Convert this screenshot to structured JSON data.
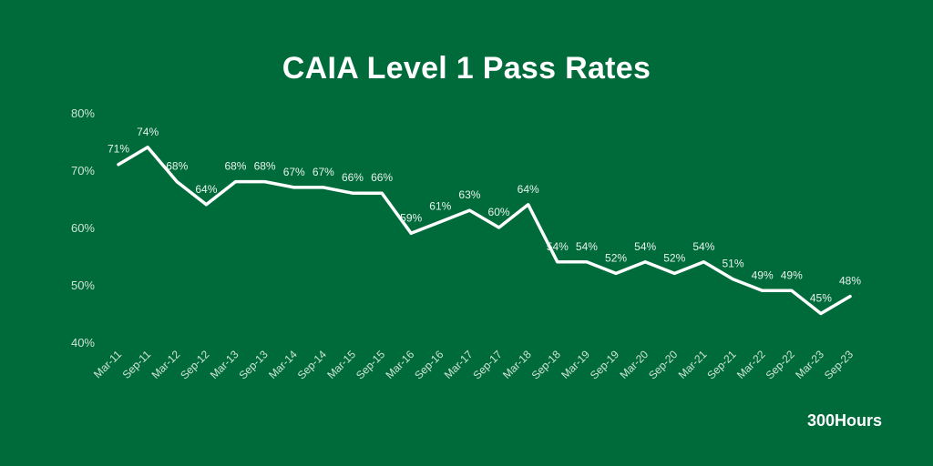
{
  "chart_data": {
    "type": "line",
    "title": "CAIA Level 1 Pass Rates",
    "xlabel": "",
    "ylabel": "",
    "x": [
      "Mar-11",
      "Sep-11",
      "Mar-12",
      "Sep-12",
      "Mar-13",
      "Sep-13",
      "Mar-14",
      "Sep-14",
      "Mar-15",
      "Sep-15",
      "Mar-16",
      "Sep-16",
      "Mar-17",
      "Sep-17",
      "Mar-18",
      "Sep-18",
      "Mar-19",
      "Sep-19",
      "Mar-20",
      "Sep-20",
      "Mar-21",
      "Sep-21",
      "Mar-22",
      "Sep-22",
      "Mar-23",
      "Sep-23"
    ],
    "series": [
      {
        "values": [
          71,
          74,
          68,
          64,
          68,
          68,
          67,
          67,
          66,
          66,
          59,
          61,
          63,
          60,
          64,
          54,
          54,
          52,
          54,
          52,
          54,
          51,
          49,
          49,
          45,
          48
        ],
        "data_labels": [
          "71%",
          "74%",
          "68%",
          "64%",
          "68%",
          "68%",
          "67%",
          "67%",
          "66%",
          "66%",
          "59%",
          "61%",
          "63%",
          "60%",
          "64%",
          "54%",
          "54%",
          "52%",
          "54%",
          "52%",
          "54%",
          "51%",
          "49%",
          "49%",
          "45%",
          "48%"
        ]
      }
    ],
    "ylim": [
      40,
      80
    ],
    "yticks": [
      40,
      50,
      60,
      70,
      80
    ],
    "ytick_labels": [
      "40%",
      "50%",
      "60%",
      "70%",
      "80%"
    ],
    "grid": false,
    "legend": "none"
  },
  "brand": "300Hours",
  "colors": {
    "background": "#006b3a",
    "line": "#ffffff",
    "text": "#ffffff"
  }
}
